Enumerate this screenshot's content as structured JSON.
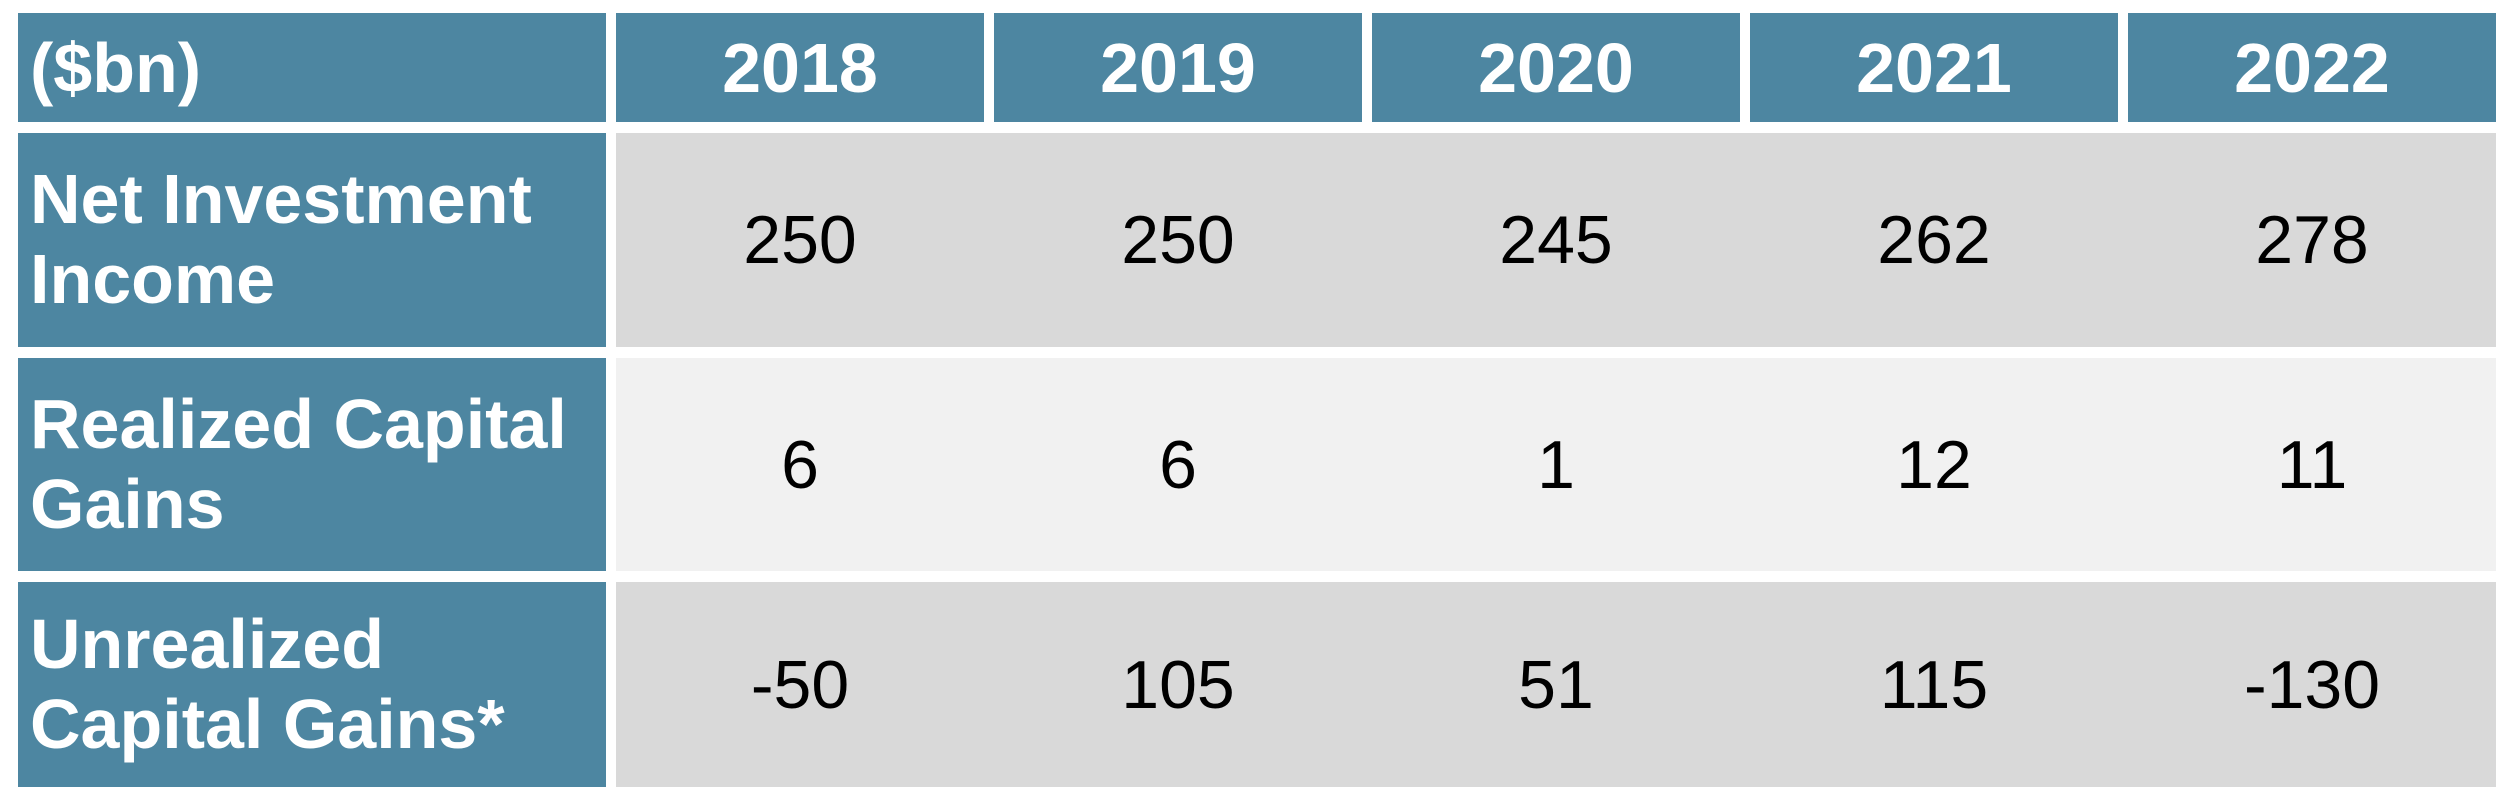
{
  "page": {
    "background": "#ffffff"
  },
  "table": {
    "unit_label": "($bn)",
    "columns": [
      "2018",
      "2019",
      "2020",
      "2021",
      "2022"
    ],
    "rows": [
      {
        "label": "Net Investment Income",
        "values": [
          "250",
          "250",
          "245",
          "262",
          "278"
        ]
      },
      {
        "label": "Realized Capital Gains",
        "values": [
          "6",
          "6",
          "1",
          "12",
          "11"
        ]
      },
      {
        "label": "Unrealized Capital Gains*",
        "values": [
          "-50",
          "105",
          "51",
          "115",
          "-130"
        ]
      }
    ],
    "colors": {
      "header_bg": "#4D86A1",
      "row_dark_bg": "#D9D9D9",
      "row_light_bg": "#F1F1F1",
      "header_text": "#FFFFFF",
      "value_text": "#000000"
    }
  },
  "chart_data": {
    "type": "table",
    "title": "",
    "unit": "($bn)",
    "categories": [
      "2018",
      "2019",
      "2020",
      "2021",
      "2022"
    ],
    "series": [
      {
        "name": "Net Investment Income",
        "values": [
          250,
          250,
          245,
          262,
          278
        ]
      },
      {
        "name": "Realized Capital Gains",
        "values": [
          6,
          6,
          1,
          12,
          11
        ]
      },
      {
        "name": "Unrealized Capital Gains*",
        "values": [
          -50,
          105,
          51,
          115,
          -130
        ]
      }
    ]
  }
}
